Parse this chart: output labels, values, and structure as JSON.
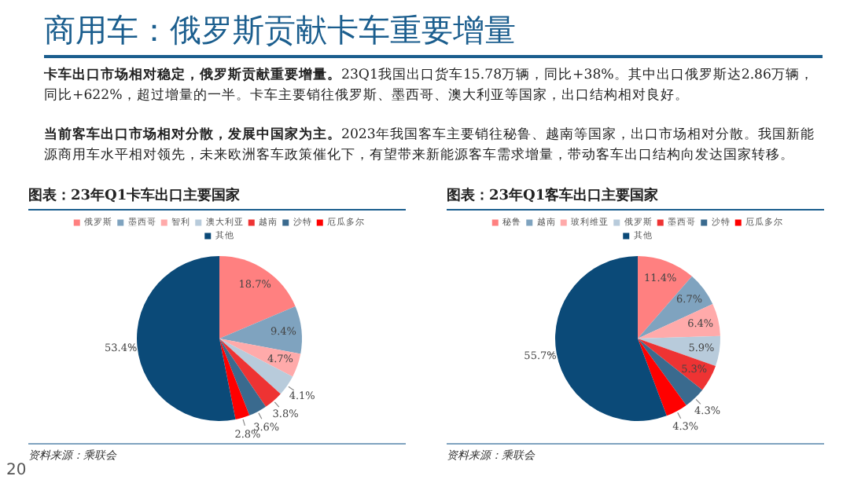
{
  "chart_data": [
    {
      "type": "other",
      "title": "商用车：俄罗斯贡献卡车重要增量",
      "annotations": [
        "卡车出口市场相对稳定，俄罗斯贡献重要增量。",
        "23Q1我国出口货车15.78万辆，同比+38%。其中出口俄罗斯达2.86万辆，同比+622%，超过增量的一半。卡车主要销往俄罗斯、墨西哥、澳大利亚等国家，出口结构相对良好。",
        "当前客车出口市场相对分散，发展中国家为主。",
        "2023年我国客车主要销往秘鲁、越南等国家，出口市场相对分散。我国新能源商用车水平相对领先，未来欧洲客车政策催化下，有望带来新能源客车需求增量，带动客车出口结构向发达国家转移。",
        "20"
      ]
    },
    {
      "type": "pie",
      "title": "图表：23年Q1卡车出口主要国家",
      "categories": [
        "俄罗斯",
        "墨西哥",
        "智利",
        "澳大利亚",
        "越南",
        "沙特",
        "厄瓜多尔",
        "其他"
      ],
      "values": [
        18.7,
        9.4,
        4.7,
        4.1,
        3.8,
        3.6,
        2.8,
        53.4
      ],
      "value_labels": [
        "18.7%",
        "9.4%",
        "4.7%",
        "4.1%",
        "3.8%",
        "3.6%",
        "2.8%",
        "53.4%"
      ],
      "colors": [
        "#ff8080",
        "#7fa3bf",
        "#ffaaaa",
        "#b8cbdb",
        "#ee3333",
        "#3a6a8e",
        "#ff0000",
        "#0b4a78"
      ],
      "legend": "top",
      "annotations": [
        "资料来源：乘联会"
      ]
    },
    {
      "type": "pie",
      "title": "图表：23年Q1客车出口主要国家",
      "categories": [
        "秘鲁",
        "越南",
        "玻利维亚",
        "俄罗斯",
        "墨西哥",
        "沙特",
        "厄瓜多尔",
        "其他"
      ],
      "values": [
        11.4,
        6.7,
        6.4,
        5.9,
        5.3,
        4.3,
        4.3,
        55.7
      ],
      "value_labels": [
        "11.4%",
        "6.7%",
        "6.4%",
        "5.9%",
        "5.3%",
        "4.3%",
        "4.3%",
        "55.7%"
      ],
      "colors": [
        "#ff8080",
        "#7fa3bf",
        "#ffaaaa",
        "#b8cbdb",
        "#ee3333",
        "#3a6a8e",
        "#ff0000",
        "#0b4a78"
      ],
      "legend": "top",
      "annotations": [
        "资料来源：乘联会"
      ]
    }
  ]
}
